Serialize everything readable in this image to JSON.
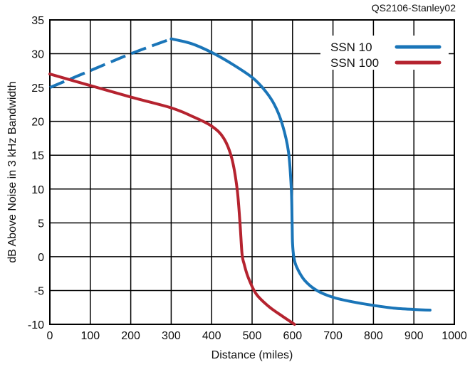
{
  "figure_id": "QS2106-Stanley02",
  "chart_data": {
    "type": "line",
    "title": "",
    "xlabel": "Distance (miles)",
    "ylabel": "dB Above Noise in 3 kHz Bandwidth",
    "xlim": [
      0,
      1000
    ],
    "ylim": [
      -10,
      35
    ],
    "xticks": [
      0,
      100,
      200,
      300,
      400,
      500,
      600,
      700,
      800,
      900,
      1000
    ],
    "yticks": [
      -10,
      -5,
      0,
      5,
      10,
      15,
      20,
      25,
      30,
      35
    ],
    "grid": true,
    "legend_position": "top-right",
    "series": [
      {
        "name": "SSN 10",
        "color": "#1a75b8",
        "dashed_until_x": 300,
        "points": [
          [
            0,
            25
          ],
          [
            100,
            27.5
          ],
          [
            200,
            30
          ],
          [
            300,
            32.2
          ],
          [
            350,
            31.5
          ],
          [
            400,
            30.2
          ],
          [
            450,
            28.5
          ],
          [
            500,
            26.5
          ],
          [
            530,
            24.7
          ],
          [
            555,
            22.5
          ],
          [
            575,
            19.5
          ],
          [
            590,
            15.5
          ],
          [
            597,
            10
          ],
          [
            599,
            5
          ],
          [
            600,
            2
          ],
          [
            603,
            0
          ],
          [
            610,
            -1.5
          ],
          [
            630,
            -3.5
          ],
          [
            660,
            -5
          ],
          [
            700,
            -6
          ],
          [
            750,
            -6.7
          ],
          [
            800,
            -7.2
          ],
          [
            850,
            -7.6
          ],
          [
            900,
            -7.8
          ],
          [
            940,
            -7.9
          ]
        ]
      },
      {
        "name": "SSN 100",
        "color": "#b5232f",
        "points": [
          [
            0,
            27
          ],
          [
            100,
            25.3
          ],
          [
            200,
            23.6
          ],
          [
            300,
            22
          ],
          [
            350,
            20.8
          ],
          [
            400,
            19.3
          ],
          [
            430,
            17.5
          ],
          [
            450,
            14.5
          ],
          [
            463,
            10
          ],
          [
            470,
            5
          ],
          [
            475,
            0.5
          ],
          [
            480,
            -1
          ],
          [
            490,
            -3
          ],
          [
            510,
            -5.5
          ],
          [
            540,
            -7.3
          ],
          [
            570,
            -8.6
          ],
          [
            605,
            -10
          ]
        ]
      }
    ]
  }
}
